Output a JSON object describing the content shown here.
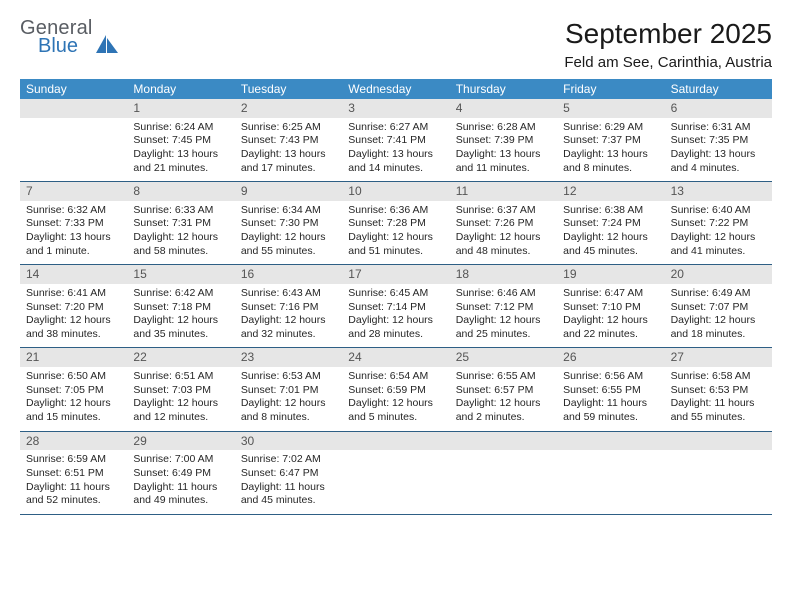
{
  "logo": {
    "text1": "General",
    "text2": "Blue",
    "text1_color": "#595d63",
    "text2_color": "#2e74b5",
    "mark_color": "#2e74b5"
  },
  "title": "September 2025",
  "location": "Feld am See, Carinthia, Austria",
  "header_bg": "#3b8ac4",
  "header_fg": "#ffffff",
  "daynum_bg": "#e6e6e6",
  "border_color": "#2e5f85",
  "weekdays": [
    "Sunday",
    "Monday",
    "Tuesday",
    "Wednesday",
    "Thursday",
    "Friday",
    "Saturday"
  ],
  "days": [
    {
      "n": "",
      "empty": true
    },
    {
      "n": "1",
      "sunrise": "Sunrise: 6:24 AM",
      "sunset": "Sunset: 7:45 PM",
      "daylight": "Daylight: 13 hours and 21 minutes."
    },
    {
      "n": "2",
      "sunrise": "Sunrise: 6:25 AM",
      "sunset": "Sunset: 7:43 PM",
      "daylight": "Daylight: 13 hours and 17 minutes."
    },
    {
      "n": "3",
      "sunrise": "Sunrise: 6:27 AM",
      "sunset": "Sunset: 7:41 PM",
      "daylight": "Daylight: 13 hours and 14 minutes."
    },
    {
      "n": "4",
      "sunrise": "Sunrise: 6:28 AM",
      "sunset": "Sunset: 7:39 PM",
      "daylight": "Daylight: 13 hours and 11 minutes."
    },
    {
      "n": "5",
      "sunrise": "Sunrise: 6:29 AM",
      "sunset": "Sunset: 7:37 PM",
      "daylight": "Daylight: 13 hours and 8 minutes."
    },
    {
      "n": "6",
      "sunrise": "Sunrise: 6:31 AM",
      "sunset": "Sunset: 7:35 PM",
      "daylight": "Daylight: 13 hours and 4 minutes."
    },
    {
      "n": "7",
      "sunrise": "Sunrise: 6:32 AM",
      "sunset": "Sunset: 7:33 PM",
      "daylight": "Daylight: 13 hours and 1 minute."
    },
    {
      "n": "8",
      "sunrise": "Sunrise: 6:33 AM",
      "sunset": "Sunset: 7:31 PM",
      "daylight": "Daylight: 12 hours and 58 minutes."
    },
    {
      "n": "9",
      "sunrise": "Sunrise: 6:34 AM",
      "sunset": "Sunset: 7:30 PM",
      "daylight": "Daylight: 12 hours and 55 minutes."
    },
    {
      "n": "10",
      "sunrise": "Sunrise: 6:36 AM",
      "sunset": "Sunset: 7:28 PM",
      "daylight": "Daylight: 12 hours and 51 minutes."
    },
    {
      "n": "11",
      "sunrise": "Sunrise: 6:37 AM",
      "sunset": "Sunset: 7:26 PM",
      "daylight": "Daylight: 12 hours and 48 minutes."
    },
    {
      "n": "12",
      "sunrise": "Sunrise: 6:38 AM",
      "sunset": "Sunset: 7:24 PM",
      "daylight": "Daylight: 12 hours and 45 minutes."
    },
    {
      "n": "13",
      "sunrise": "Sunrise: 6:40 AM",
      "sunset": "Sunset: 7:22 PM",
      "daylight": "Daylight: 12 hours and 41 minutes."
    },
    {
      "n": "14",
      "sunrise": "Sunrise: 6:41 AM",
      "sunset": "Sunset: 7:20 PM",
      "daylight": "Daylight: 12 hours and 38 minutes."
    },
    {
      "n": "15",
      "sunrise": "Sunrise: 6:42 AM",
      "sunset": "Sunset: 7:18 PM",
      "daylight": "Daylight: 12 hours and 35 minutes."
    },
    {
      "n": "16",
      "sunrise": "Sunrise: 6:43 AM",
      "sunset": "Sunset: 7:16 PM",
      "daylight": "Daylight: 12 hours and 32 minutes."
    },
    {
      "n": "17",
      "sunrise": "Sunrise: 6:45 AM",
      "sunset": "Sunset: 7:14 PM",
      "daylight": "Daylight: 12 hours and 28 minutes."
    },
    {
      "n": "18",
      "sunrise": "Sunrise: 6:46 AM",
      "sunset": "Sunset: 7:12 PM",
      "daylight": "Daylight: 12 hours and 25 minutes."
    },
    {
      "n": "19",
      "sunrise": "Sunrise: 6:47 AM",
      "sunset": "Sunset: 7:10 PM",
      "daylight": "Daylight: 12 hours and 22 minutes."
    },
    {
      "n": "20",
      "sunrise": "Sunrise: 6:49 AM",
      "sunset": "Sunset: 7:07 PM",
      "daylight": "Daylight: 12 hours and 18 minutes."
    },
    {
      "n": "21",
      "sunrise": "Sunrise: 6:50 AM",
      "sunset": "Sunset: 7:05 PM",
      "daylight": "Daylight: 12 hours and 15 minutes."
    },
    {
      "n": "22",
      "sunrise": "Sunrise: 6:51 AM",
      "sunset": "Sunset: 7:03 PM",
      "daylight": "Daylight: 12 hours and 12 minutes."
    },
    {
      "n": "23",
      "sunrise": "Sunrise: 6:53 AM",
      "sunset": "Sunset: 7:01 PM",
      "daylight": "Daylight: 12 hours and 8 minutes."
    },
    {
      "n": "24",
      "sunrise": "Sunrise: 6:54 AM",
      "sunset": "Sunset: 6:59 PM",
      "daylight": "Daylight: 12 hours and 5 minutes."
    },
    {
      "n": "25",
      "sunrise": "Sunrise: 6:55 AM",
      "sunset": "Sunset: 6:57 PM",
      "daylight": "Daylight: 12 hours and 2 minutes."
    },
    {
      "n": "26",
      "sunrise": "Sunrise: 6:56 AM",
      "sunset": "Sunset: 6:55 PM",
      "daylight": "Daylight: 11 hours and 59 minutes."
    },
    {
      "n": "27",
      "sunrise": "Sunrise: 6:58 AM",
      "sunset": "Sunset: 6:53 PM",
      "daylight": "Daylight: 11 hours and 55 minutes."
    },
    {
      "n": "28",
      "sunrise": "Sunrise: 6:59 AM",
      "sunset": "Sunset: 6:51 PM",
      "daylight": "Daylight: 11 hours and 52 minutes."
    },
    {
      "n": "29",
      "sunrise": "Sunrise: 7:00 AM",
      "sunset": "Sunset: 6:49 PM",
      "daylight": "Daylight: 11 hours and 49 minutes."
    },
    {
      "n": "30",
      "sunrise": "Sunrise: 7:02 AM",
      "sunset": "Sunset: 6:47 PM",
      "daylight": "Daylight: 11 hours and 45 minutes."
    },
    {
      "n": "",
      "empty": true
    },
    {
      "n": "",
      "empty": true
    },
    {
      "n": "",
      "empty": true
    },
    {
      "n": "",
      "empty": true
    }
  ]
}
